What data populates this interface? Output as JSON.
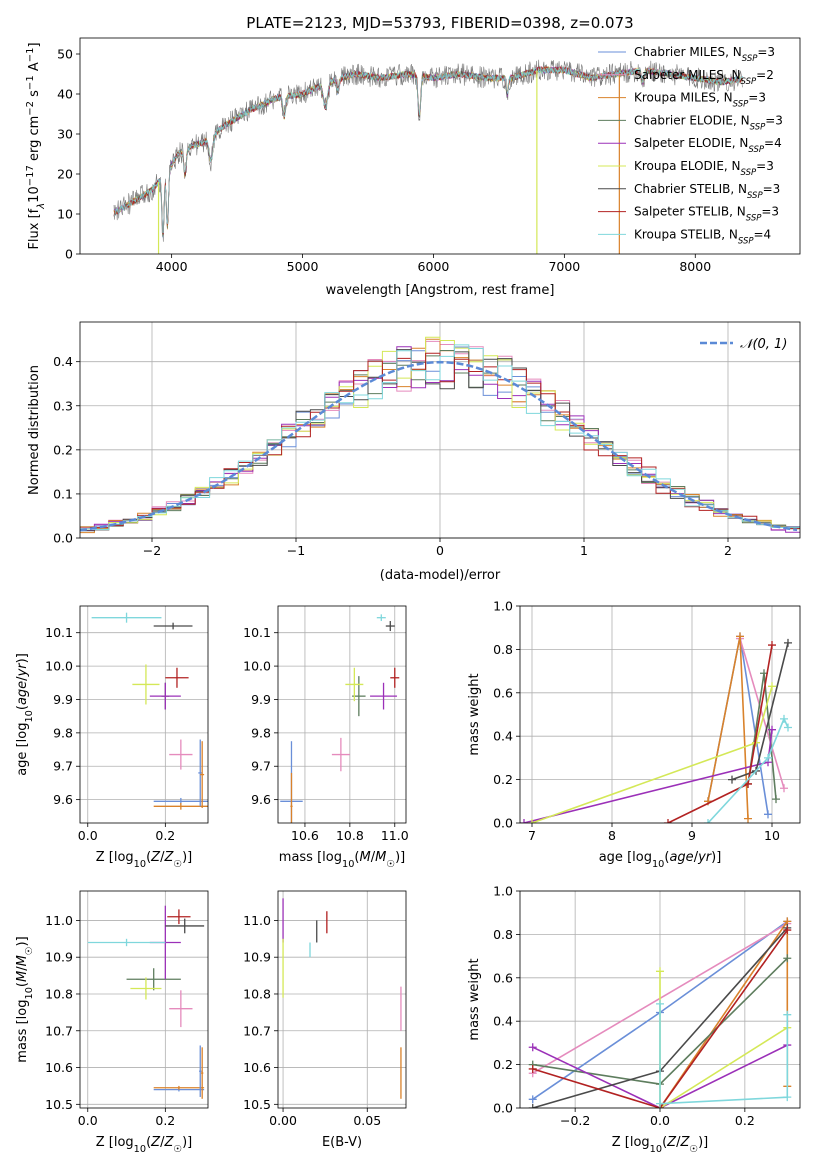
{
  "chart_data": [
    {
      "panel": "spectrum",
      "type": "line",
      "title": "PLATE=2123, MJD=53793, FIBERID=0398, z=0.073",
      "xlabel": "wavelength [Angstrom, rest frame]",
      "ylabel_parts": [
        "Flux [f",
        "λ",
        "10",
        "−17",
        " erg cm",
        "−2",
        " s",
        "−1",
        " A",
        "−1",
        "]"
      ],
      "xlim": [
        3300,
        8800
      ],
      "ylim": [
        0,
        54
      ],
      "xticks": [
        4000,
        5000,
        6000,
        7000,
        8000
      ],
      "yticks": [
        0,
        10,
        20,
        30,
        40,
        50
      ],
      "continuum": {
        "x": [
          3550,
          3650,
          3750,
          3850,
          3950,
          4050,
          4150,
          4250,
          4400,
          4600,
          4800,
          5000,
          5200,
          5400,
          5600,
          5800,
          6000,
          6200,
          6400,
          6600,
          6800,
          7000,
          7200,
          7400,
          7600,
          7800,
          8000,
          8200,
          8400
        ],
        "y": [
          10,
          12,
          14,
          16,
          20,
          25,
          27,
          28,
          32,
          36,
          39,
          40,
          43,
          45,
          44,
          45,
          44,
          45,
          44,
          44,
          46,
          46,
          44,
          45,
          46,
          45,
          44,
          43,
          44
        ]
      },
      "series": [
        {
          "legend": [
            "Chabrier MILES, N",
            "SSP",
            "=3"
          ],
          "color": "#6a8fd8"
        },
        {
          "legend": [
            "Salpeter MILES, N",
            "SSP",
            "=2"
          ],
          "color": "#e58bbd"
        },
        {
          "legend": [
            "Kroupa MILES, N",
            "SSP",
            "=3"
          ],
          "color": "#d9822b"
        },
        {
          "legend": [
            "Chabrier ELODIE, N",
            "SSP",
            "=3"
          ],
          "color": "#5e7d5e"
        },
        {
          "legend": [
            "Salpeter ELODIE, N",
            "SSP",
            "=4"
          ],
          "color": "#9b30b8"
        },
        {
          "legend": [
            "Kroupa ELODIE, N",
            "SSP",
            "=3"
          ],
          "color": "#d4e857"
        },
        {
          "legend": [
            "Chabrier STELIB, N",
            "SSP",
            "=3"
          ],
          "color": "#4a4a4a"
        },
        {
          "legend": [
            "Salpeter STELIB, N",
            "SSP",
            "=3"
          ],
          "color": "#b22222"
        },
        {
          "legend": [
            "Kroupa STELIB, N",
            "SSP",
            "=4"
          ],
          "color": "#7fd7dc"
        }
      ],
      "spikes": [
        {
          "x": 3900,
          "series": 5
        },
        {
          "x": 6790,
          "series": 5
        },
        {
          "x": 7420,
          "series": 2
        }
      ]
    },
    {
      "panel": "residuals",
      "type": "step",
      "xlabel": "(data-model)/error",
      "ylabel": "Normed distribution",
      "xlim": [
        -2.5,
        2.5
      ],
      "ylim": [
        0,
        0.49
      ],
      "xticks": [
        -2,
        -1,
        0,
        1,
        2
      ],
      "ytick_labels": [
        "0.0",
        "0.1",
        "0.2",
        "0.3",
        "0.4"
      ],
      "xtick_labels": [
        "−2",
        "−1",
        "0",
        "1",
        "2"
      ],
      "bin_width": 0.1,
      "reference": {
        "label": "𝒩(0, 1)",
        "color": "#5b8ad6",
        "mu": 0,
        "sigma": 1
      }
    },
    {
      "panel": "age-vs-Z",
      "type": "errorbar",
      "xlabel": "Z [log10(Z/Z☉)]",
      "ylabel": "age  [log10(age/yr)]",
      "xlim": [
        -0.02,
        0.31
      ],
      "ylim": [
        9.53,
        10.18
      ],
      "xticks": [
        0.0,
        0.2
      ],
      "xtick_labels": [
        "0.0",
        "0.2"
      ],
      "yticks": [
        9.6,
        9.7,
        9.8,
        9.9,
        10.0,
        10.1
      ],
      "ytick_labels": [
        "9.6",
        "9.7",
        "9.8",
        "9.9",
        "10.0",
        "10.1"
      ],
      "points": [
        {
          "s": 0,
          "x": 0.24,
          "y": 9.595,
          "xerr": 0.07,
          "yerr": 0.01
        },
        {
          "s": 1,
          "x": 0.24,
          "y": 9.735,
          "xerr": 0.03,
          "yerr": 0.045
        },
        {
          "s": 2,
          "x": 0.24,
          "y": 9.58,
          "xerr": 0.07,
          "yerr": 0.01
        },
        {
          "s": 3,
          "x": 0.2,
          "y": 9.91,
          "xerr": 0.01,
          "yerr": 0.04
        },
        {
          "s": 4,
          "x": 0.2,
          "y": 9.91,
          "xerr": 0.04,
          "yerr": 0.04
        },
        {
          "s": 5,
          "x": 0.15,
          "y": 9.945,
          "xerr": 0.035,
          "yerr": 0.06
        },
        {
          "s": 6,
          "x": 0.22,
          "y": 10.12,
          "xerr": 0.05,
          "yerr": 0.01
        },
        {
          "s": 7,
          "x": 0.23,
          "y": 9.965,
          "xerr": 0.03,
          "yerr": 0.03
        },
        {
          "s": 8,
          "x": 0.1,
          "y": 10.145,
          "xerr": 0.09,
          "yerr": 0.015
        },
        {
          "s": 0,
          "x": 0.29,
          "y": 9.68,
          "xerr": 0.005,
          "yerr": 0.1
        },
        {
          "s": 2,
          "x": 0.295,
          "y": 9.675,
          "xerr": 0.005,
          "yerr": 0.1
        }
      ]
    },
    {
      "panel": "age-vs-mass",
      "type": "errorbar",
      "xlabel": "mass [log10(M/M☉)]",
      "xlim": [
        10.48,
        11.05
      ],
      "ylim": [
        9.53,
        10.18
      ],
      "xticks": [
        10.6,
        10.8,
        11.0
      ],
      "xtick_labels": [
        "10.6",
        "10.8",
        "11.0"
      ],
      "yticks": [
        9.6,
        9.7,
        9.8,
        9.9,
        10.0,
        10.1
      ],
      "ytick_labels": [
        "9.6",
        "9.7",
        "9.8",
        "9.9",
        "10.0",
        "10.1"
      ],
      "points": [
        {
          "s": 0,
          "x": 10.54,
          "y": 9.595,
          "xerr": 0.05,
          "yerr": 0.18
        },
        {
          "s": 1,
          "x": 10.76,
          "y": 9.735,
          "xerr": 0.04,
          "yerr": 0.05
        },
        {
          "s": 2,
          "x": 10.54,
          "y": 9.58,
          "xerr": 0.005,
          "yerr": 0.1
        },
        {
          "s": 3,
          "x": 10.84,
          "y": 9.91,
          "xerr": 0.03,
          "yerr": 0.06
        },
        {
          "s": 4,
          "x": 10.95,
          "y": 9.91,
          "xerr": 0.06,
          "yerr": 0.04
        },
        {
          "s": 5,
          "x": 10.82,
          "y": 9.945,
          "xerr": 0.04,
          "yerr": 0.05
        },
        {
          "s": 6,
          "x": 10.98,
          "y": 10.12,
          "xerr": 0.02,
          "yerr": 0.015
        },
        {
          "s": 7,
          "x": 11.0,
          "y": 9.965,
          "xerr": 0.02,
          "yerr": 0.03
        },
        {
          "s": 8,
          "x": 10.94,
          "y": 10.145,
          "xerr": 0.02,
          "yerr": 0.01
        }
      ]
    },
    {
      "panel": "weight-vs-age",
      "type": "line",
      "xlabel": "age  [log10(age/yr)]",
      "ylabel": "mass weight",
      "xlim": [
        6.85,
        10.35
      ],
      "ylim": [
        0,
        1
      ],
      "xticks": [
        7,
        8,
        9,
        10
      ],
      "xtick_labels": [
        "7",
        "8",
        "9",
        "10"
      ],
      "yticks": [
        0.0,
        0.2,
        0.4,
        0.6,
        0.8,
        1.0
      ],
      "ytick_labels": [
        "0.0",
        "0.2",
        "0.4",
        "0.6",
        "0.8",
        "1.0"
      ],
      "series_points": [
        {
          "s": 0,
          "x": [
            9.2,
            9.6,
            9.95
          ],
          "y": [
            0.1,
            0.86,
            0.04
          ]
        },
        {
          "s": 1,
          "x": [
            9.6,
            10.15
          ],
          "y": [
            0.85,
            0.16
          ]
        },
        {
          "s": 2,
          "x": [
            9.2,
            9.6,
            9.7
          ],
          "y": [
            0.1,
            0.86,
            0.02
          ]
        },
        {
          "s": 3,
          "x": [
            9.7,
            9.9,
            10.05
          ],
          "y": [
            0.18,
            0.69,
            0.11
          ]
        },
        {
          "s": 4,
          "x": [
            6.9,
            9.95,
            10.0
          ],
          "y": [
            0.0,
            0.28,
            0.43
          ]
        },
        {
          "s": 5,
          "x": [
            7.0,
            9.8,
            10.0
          ],
          "y": [
            0.0,
            0.37,
            0.63
          ]
        },
        {
          "s": 6,
          "x": [
            9.5,
            9.8,
            10.2
          ],
          "y": [
            0.2,
            0.24,
            0.83
          ]
        },
        {
          "s": 7,
          "x": [
            8.7,
            9.7,
            10.0
          ],
          "y": [
            0.0,
            0.18,
            0.82
          ]
        },
        {
          "s": 8,
          "x": [
            9.2,
            9.95,
            10.15,
            10.2
          ],
          "y": [
            0.0,
            0.3,
            0.48,
            0.44
          ]
        }
      ]
    },
    {
      "panel": "mass-vs-Z",
      "type": "errorbar",
      "xlabel": "Z [log10(Z/Z☉)]",
      "ylabel": "mass [log10(M/M☉)]",
      "xlim": [
        -0.02,
        0.31
      ],
      "ylim": [
        10.49,
        11.08
      ],
      "xticks": [
        0.0,
        0.2
      ],
      "xtick_labels": [
        "0.0",
        "0.2"
      ],
      "yticks": [
        10.5,
        10.6,
        10.7,
        10.8,
        10.9,
        11.0
      ],
      "ytick_labels": [
        "10.5",
        "10.6",
        "10.7",
        "10.8",
        "10.9",
        "11.0"
      ],
      "points": [
        {
          "s": 0,
          "x": 0.235,
          "y": 10.54,
          "xerr": 0.065,
          "yerr": 0.005
        },
        {
          "s": 1,
          "x": 0.24,
          "y": 10.76,
          "xerr": 0.03,
          "yerr": 0.05
        },
        {
          "s": 2,
          "x": 0.235,
          "y": 10.545,
          "xerr": 0.065,
          "yerr": 0.005
        },
        {
          "s": 3,
          "x": 0.17,
          "y": 10.84,
          "xerr": 0.07,
          "yerr": 0.03
        },
        {
          "s": 4,
          "x": 0.2,
          "y": 10.94,
          "xerr": 0.04,
          "yerr": 0.1
        },
        {
          "s": 5,
          "x": 0.15,
          "y": 10.815,
          "xerr": 0.04,
          "yerr": 0.03
        },
        {
          "s": 6,
          "x": 0.25,
          "y": 10.985,
          "xerr": 0.05,
          "yerr": 0.02
        },
        {
          "s": 7,
          "x": 0.235,
          "y": 11.01,
          "xerr": 0.03,
          "yerr": 0.02
        },
        {
          "s": 8,
          "x": 0.1,
          "y": 10.94,
          "xerr": 0.1,
          "yerr": 0.01
        },
        {
          "s": 0,
          "x": 0.29,
          "y": 10.59,
          "xerr": 0.003,
          "yerr": 0.07
        },
        {
          "s": 2,
          "x": 0.295,
          "y": 10.585,
          "xerr": 0.003,
          "yerr": 0.07
        }
      ]
    },
    {
      "panel": "mass-vs-EBV",
      "type": "errorbar",
      "xlabel": "E(B-V)",
      "xlim": [
        -0.003,
        0.073
      ],
      "ylim": [
        10.49,
        11.08
      ],
      "xticks": [
        0.0,
        0.05
      ],
      "xtick_labels": [
        "0.00",
        "0.05"
      ],
      "yticks": [
        10.5,
        10.6,
        10.7,
        10.8,
        10.9,
        11.0
      ],
      "ytick_labels": [
        "10.5",
        "10.6",
        "10.7",
        "10.8",
        "10.9",
        "11.0"
      ],
      "points": [
        {
          "s": 1,
          "x": 0.07,
          "y": 10.76,
          "xerr": 0,
          "yerr": 0.06
        },
        {
          "s": 2,
          "x": 0.07,
          "y": 10.585,
          "xerr": 0,
          "yerr": 0.07
        },
        {
          "s": 4,
          "x": 0.0,
          "y": 11.0,
          "xerr": 0,
          "yerr": 0.06
        },
        {
          "s": 5,
          "x": 0.0,
          "y": 10.87,
          "xerr": 0,
          "yerr": 0.08
        },
        {
          "s": 6,
          "x": 0.02,
          "y": 10.97,
          "xerr": 0,
          "yerr": 0.03
        },
        {
          "s": 7,
          "x": 0.026,
          "y": 10.995,
          "xerr": 0,
          "yerr": 0.03
        },
        {
          "s": 8,
          "x": 0.016,
          "y": 10.92,
          "xerr": 0,
          "yerr": 0.02
        }
      ]
    },
    {
      "panel": "weight-vs-Z",
      "type": "line",
      "xlabel": "Z [log10(Z/Z☉)]",
      "ylabel": "mass weight",
      "xlim": [
        -0.33,
        0.33
      ],
      "ylim": [
        0,
        1
      ],
      "xticks": [
        -0.2,
        0.0,
        0.2
      ],
      "xtick_labels": [
        "−0.2",
        "0.0",
        "0.2"
      ],
      "yticks": [
        0.0,
        0.2,
        0.4,
        0.6,
        0.8,
        1.0
      ],
      "ytick_labels": [
        "0.0",
        "0.2",
        "0.4",
        "0.6",
        "0.8",
        "1.0"
      ],
      "series_points": [
        {
          "s": 0,
          "x": [
            -0.3,
            0.0,
            0.3
          ],
          "y": [
            0.04,
            0.44,
            0.86
          ]
        },
        {
          "s": 1,
          "x": [
            -0.3,
            0.3
          ],
          "y": [
            0.16,
            0.85
          ]
        },
        {
          "s": 2,
          "x": [
            0.0,
            0.3,
            0.3
          ],
          "y": [
            0.0,
            0.86,
            0.1
          ]
        },
        {
          "s": 3,
          "x": [
            -0.3,
            0.0,
            0.3
          ],
          "y": [
            0.2,
            0.11,
            0.69
          ]
        },
        {
          "s": 4,
          "x": [
            -0.3,
            0.0,
            0.3
          ],
          "y": [
            0.28,
            0.0,
            0.29
          ]
        },
        {
          "s": 5,
          "x": [
            0.0,
            0.0,
            0.3
          ],
          "y": [
            0.63,
            0.0,
            0.37
          ]
        },
        {
          "s": 6,
          "x": [
            -0.3,
            0.0,
            0.3
          ],
          "y": [
            0.0,
            0.17,
            0.83
          ]
        },
        {
          "s": 7,
          "x": [
            -0.3,
            0.0,
            0.3
          ],
          "y": [
            0.18,
            0.0,
            0.82
          ]
        },
        {
          "s": 8,
          "x": [
            0.0,
            0.0,
            0.3,
            0.3
          ],
          "y": [
            0.48,
            0.02,
            0.05,
            0.43
          ]
        }
      ]
    }
  ]
}
